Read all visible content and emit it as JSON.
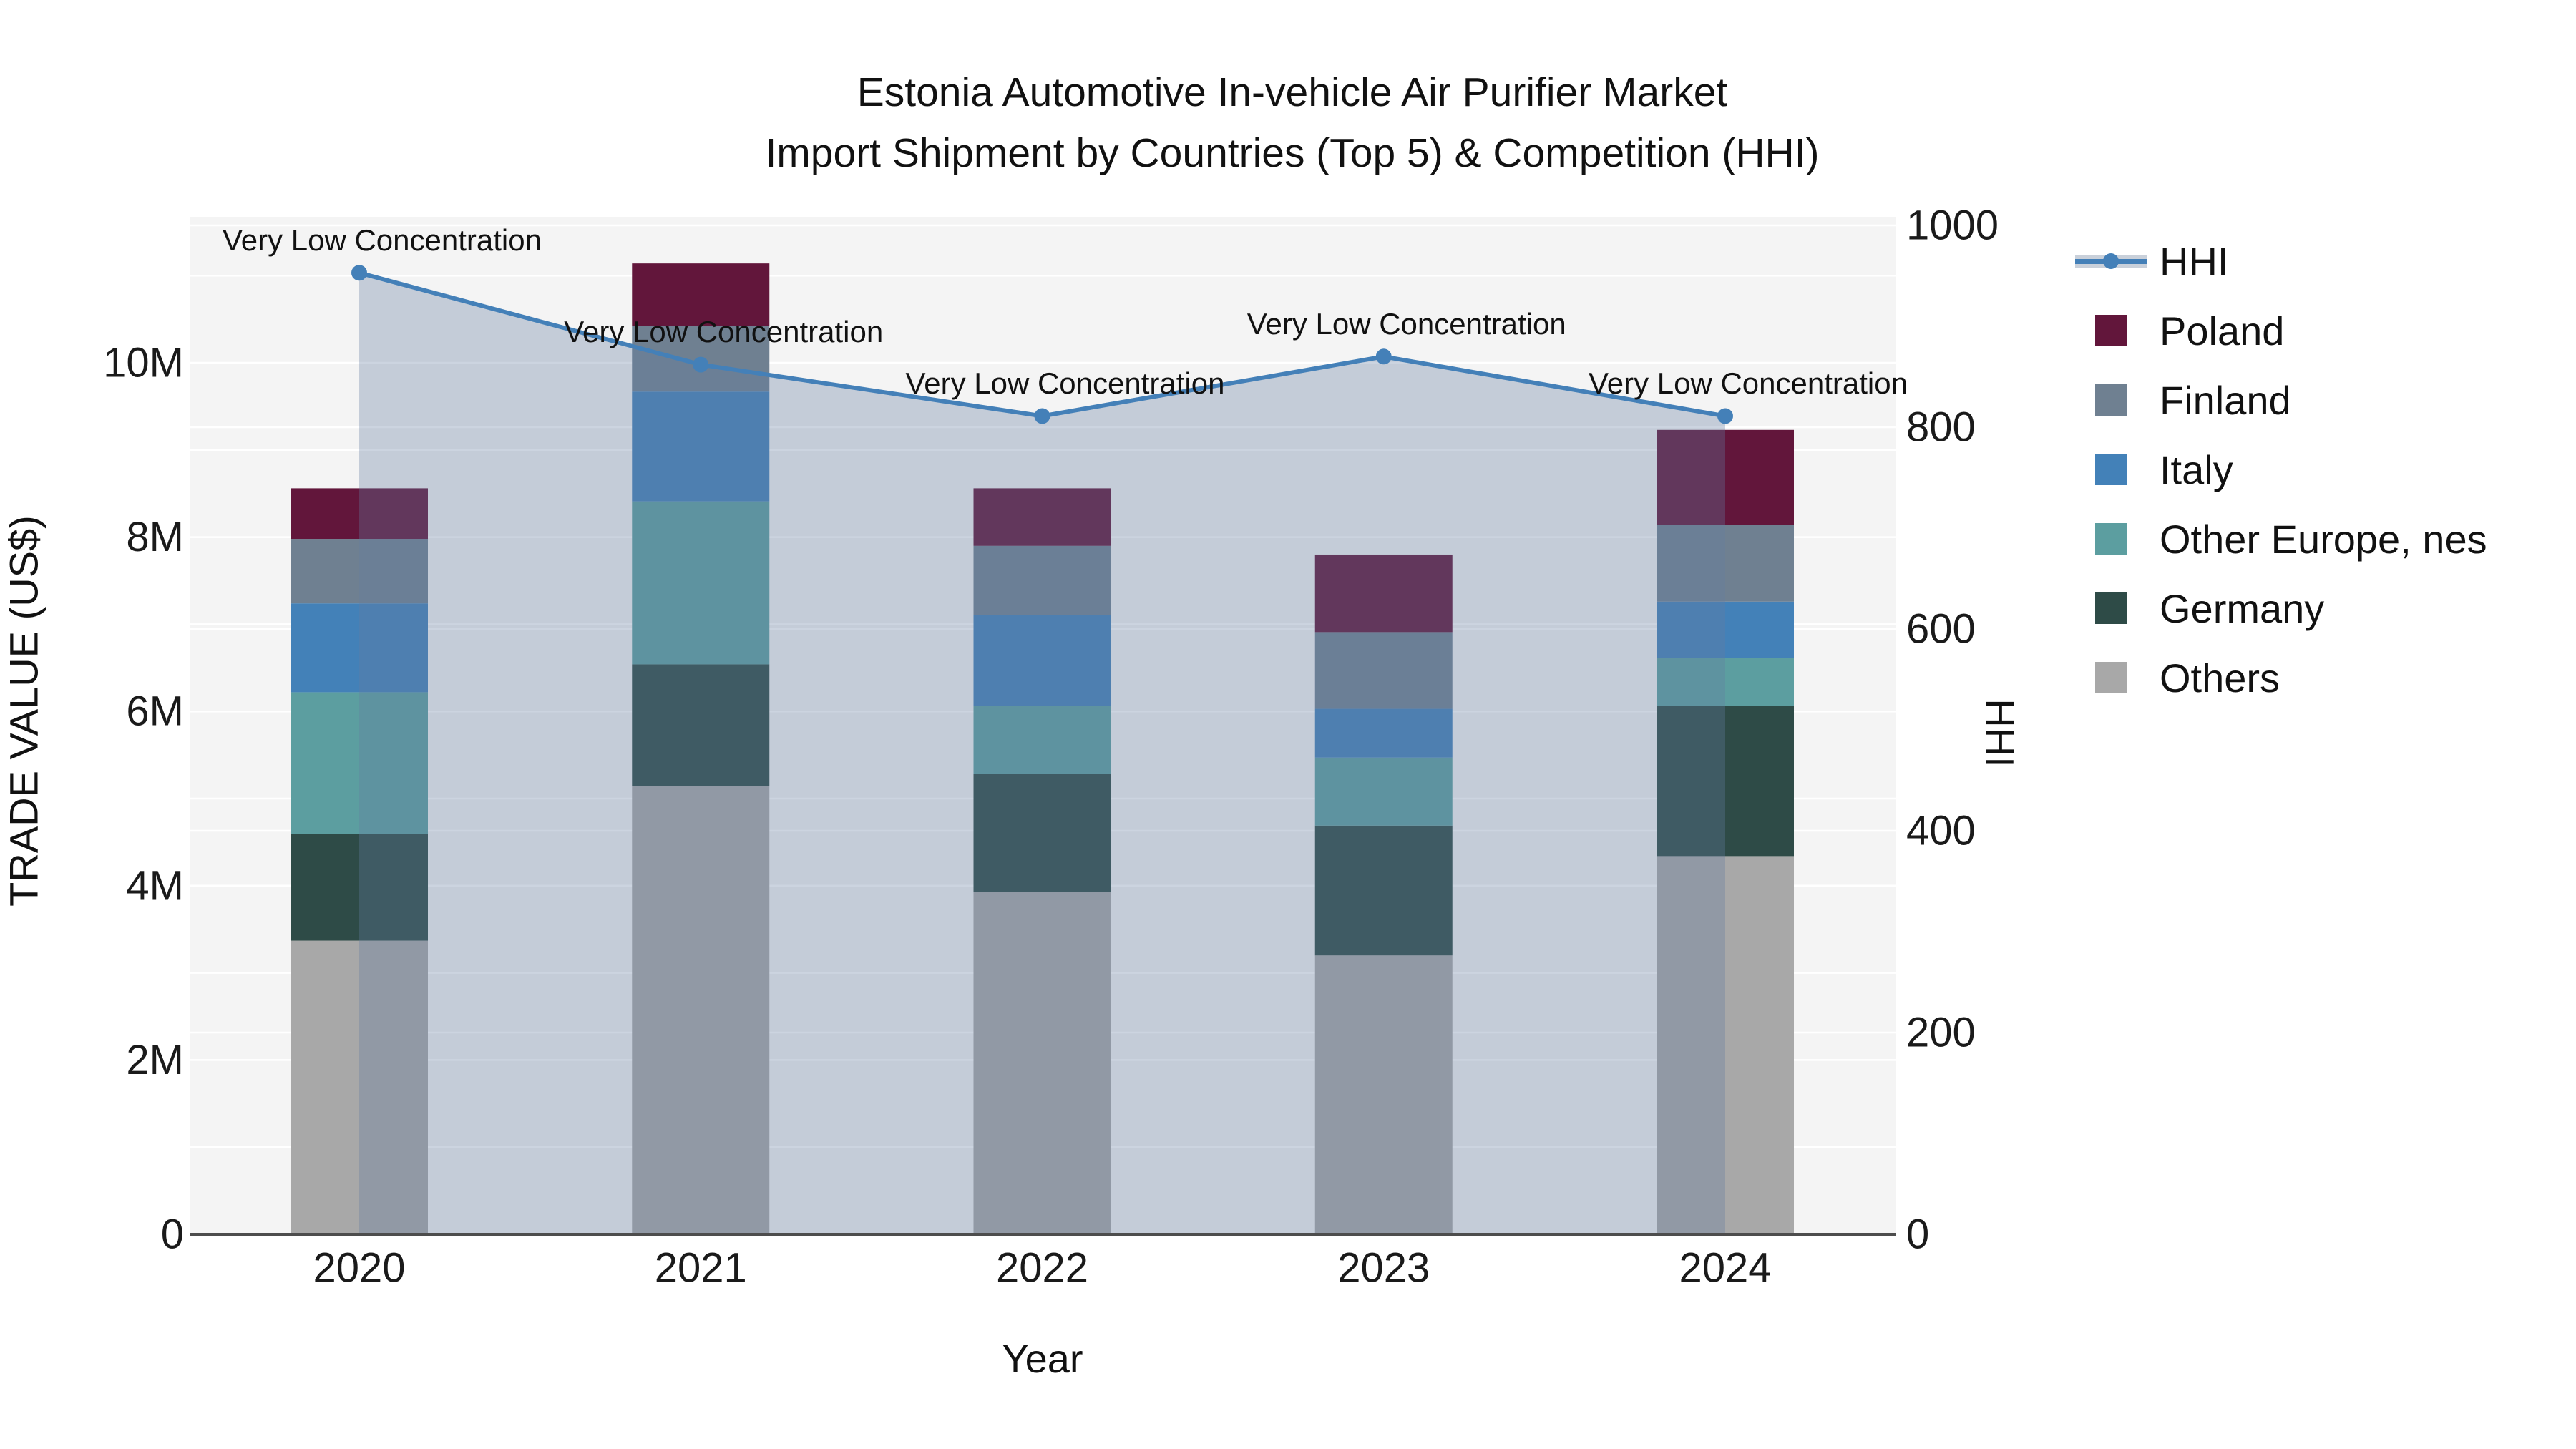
{
  "title": {
    "line1": "Estonia Automotive In-vehicle Air Purifier Market",
    "line2": "Import Shipment by Countries (Top 5) & Competition (HHI)"
  },
  "chart_data": {
    "type": "bar",
    "subtype": "stacked-bars-with-line-overlay",
    "unit": "US$ millions",
    "categories": [
      "2020",
      "2021",
      "2022",
      "2023",
      "2024"
    ],
    "series": [
      {
        "name": "Poland",
        "color": "#62163b",
        "values": [
          0.58,
          0.72,
          0.66,
          0.89,
          1.09
        ]
      },
      {
        "name": "Finland",
        "color": "#6f8091",
        "values": [
          0.74,
          0.75,
          0.79,
          0.88,
          0.88
        ]
      },
      {
        "name": "Italy",
        "color": "#4381b8",
        "values": [
          1.02,
          1.26,
          1.05,
          0.56,
          0.65
        ]
      },
      {
        "name": "Other Europe, nes",
        "color": "#5c9ea0",
        "values": [
          1.63,
          1.87,
          0.78,
          0.78,
          0.55
        ]
      },
      {
        "name": "Germany",
        "color": "#2e4b47",
        "values": [
          1.22,
          1.4,
          1.35,
          1.49,
          1.72
        ]
      },
      {
        "name": "Others",
        "color": "#a8a8a8",
        "values": [
          3.37,
          5.14,
          3.93,
          3.2,
          4.34
        ]
      }
    ],
    "stack_order_bottom_to_top": [
      "Others",
      "Germany",
      "Other Europe, nes",
      "Italy",
      "Finland",
      "Poland"
    ],
    "line_series": {
      "name": "HHI",
      "color": "#4480b8",
      "fill_color": "rgba(100,125,160,0.33)",
      "values": [
        953,
        862,
        811,
        870,
        811
      ]
    },
    "annotations": [
      "Very Low Concentration",
      "Very Low Concentration",
      "Very Low Concentration",
      "Very Low Concentration",
      "Very Low Concentration"
    ],
    "xlabel": "Year",
    "ylabel_left": "TRADE VALUE (US$)",
    "ylabel_right": "HHI",
    "yticks_left": [
      {
        "label": "0",
        "value": 0
      },
      {
        "label": "2M",
        "value": 2
      },
      {
        "label": "4M",
        "value": 4
      },
      {
        "label": "6M",
        "value": 6
      },
      {
        "label": "8M",
        "value": 8
      },
      {
        "label": "10M",
        "value": 10
      }
    ],
    "yticks_right": [
      {
        "label": "0",
        "value": 0
      },
      {
        "label": "200",
        "value": 200
      },
      {
        "label": "400",
        "value": 400
      },
      {
        "label": "600",
        "value": 600
      },
      {
        "label": "800",
        "value": 800
      },
      {
        "label": "1000",
        "value": 1000
      }
    ],
    "ylim_left": [
      0,
      11.675
    ],
    "ylim_right": [
      0,
      1008.5
    ],
    "grid": "on",
    "grid_step_left": 1,
    "grid_step_right": 200,
    "plot_bg": "#f4f4f4",
    "grid_color": "#ffffff",
    "axis_line_color": "#4d4d4d",
    "tick_color": "#1a1a1a",
    "legend_position": "right",
    "legend": [
      {
        "label": "HHI",
        "type": "line"
      },
      {
        "label": "Poland",
        "type": "square",
        "color": "#62163b"
      },
      {
        "label": "Finland",
        "type": "square",
        "color": "#6f8091"
      },
      {
        "label": "Italy",
        "type": "square",
        "color": "#4381b8"
      },
      {
        "label": "Other Europe, nes",
        "type": "square",
        "color": "#5c9ea0"
      },
      {
        "label": "Germany",
        "type": "square",
        "color": "#2e4b47"
      },
      {
        "label": "Others",
        "type": "square",
        "color": "#a8a8a8"
      }
    ]
  }
}
